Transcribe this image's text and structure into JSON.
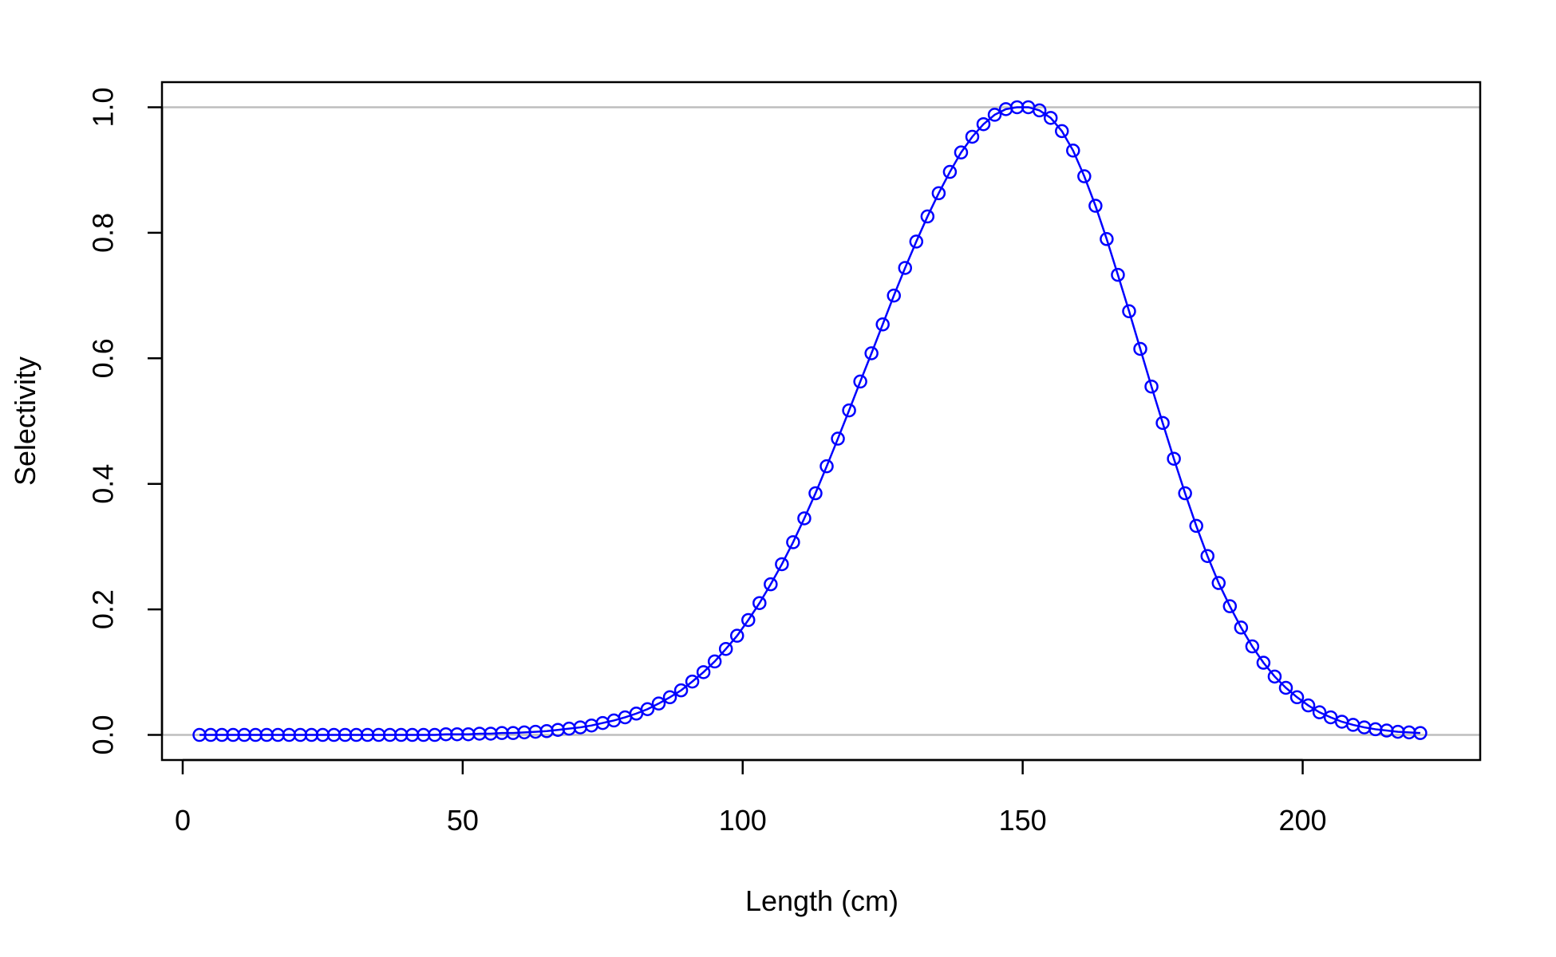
{
  "chart_data": {
    "type": "line",
    "title": "",
    "xlabel": "Length (cm)",
    "ylabel": "Selectivity",
    "xlim": [
      -3.7,
      231.7
    ],
    "ylim": [
      -0.04,
      1.04
    ],
    "xticks": [
      0,
      50,
      100,
      150,
      200
    ],
    "xtick_labels": [
      "0",
      "50",
      "100",
      "150",
      "200"
    ],
    "yticks": [
      0,
      0.2,
      0.4,
      0.6,
      0.8,
      1.0
    ],
    "ytick_labels": [
      "0.0",
      "0.2",
      "0.4",
      "0.6",
      "0.8",
      "1.0"
    ],
    "reference_lines_y": [
      0,
      1
    ],
    "reference_line_color": "#bebebe",
    "series_color": "#0000ff",
    "marker": "open-circle",
    "grid": false,
    "series": [
      {
        "x": [
          3,
          5,
          7,
          9,
          11,
          13,
          15,
          17,
          19,
          21,
          23,
          25,
          27,
          29,
          31,
          33,
          35,
          37,
          39,
          41,
          43,
          45,
          47,
          49,
          51,
          53,
          55,
          57,
          59,
          61,
          63,
          65,
          67,
          69,
          71,
          73,
          75,
          77,
          79,
          81,
          83,
          85,
          87,
          89,
          91,
          93,
          95,
          97,
          99,
          101,
          103,
          105,
          107,
          109,
          111,
          113,
          115,
          117,
          119,
          121,
          123,
          125,
          127,
          129,
          131,
          133,
          135,
          137,
          139,
          141,
          143,
          145,
          147,
          149,
          151,
          153,
          155,
          157,
          159,
          161,
          163,
          165,
          167,
          169,
          171,
          173,
          175,
          177,
          179,
          181,
          183,
          185,
          187,
          189,
          191,
          193,
          195,
          197,
          199,
          201,
          203,
          205,
          207,
          209,
          211,
          213,
          215,
          217,
          219,
          221
        ],
        "y": [
          0.0,
          0.0,
          0.0,
          0.0,
          0.0,
          0.0,
          0.0,
          0.0,
          0.0,
          0.0,
          0.0,
          0.0,
          0.0,
          0.0,
          0.0,
          0.0,
          0.0,
          0.0,
          0.0,
          0.0,
          0.0,
          0.0,
          0.001,
          0.001,
          0.001,
          0.002,
          0.002,
          0.003,
          0.003,
          0.004,
          0.005,
          0.006,
          0.008,
          0.01,
          0.012,
          0.015,
          0.019,
          0.023,
          0.028,
          0.034,
          0.041,
          0.05,
          0.06,
          0.071,
          0.085,
          0.1,
          0.117,
          0.137,
          0.158,
          0.183,
          0.21,
          0.24,
          0.272,
          0.307,
          0.345,
          0.385,
          0.428,
          0.472,
          0.517,
          0.563,
          0.608,
          0.654,
          0.7,
          0.744,
          0.786,
          0.826,
          0.863,
          0.897,
          0.928,
          0.953,
          0.973,
          0.988,
          0.997,
          1.0,
          1.0,
          0.995,
          0.983,
          0.962,
          0.931,
          0.89,
          0.843,
          0.79,
          0.733,
          0.675,
          0.615,
          0.555,
          0.497,
          0.44,
          0.385,
          0.333,
          0.285,
          0.242,
          0.205,
          0.171,
          0.141,
          0.115,
          0.093,
          0.075,
          0.06,
          0.047,
          0.036,
          0.028,
          0.021,
          0.016,
          0.012,
          0.009,
          0.007,
          0.005,
          0.004,
          0.003
        ]
      }
    ]
  }
}
